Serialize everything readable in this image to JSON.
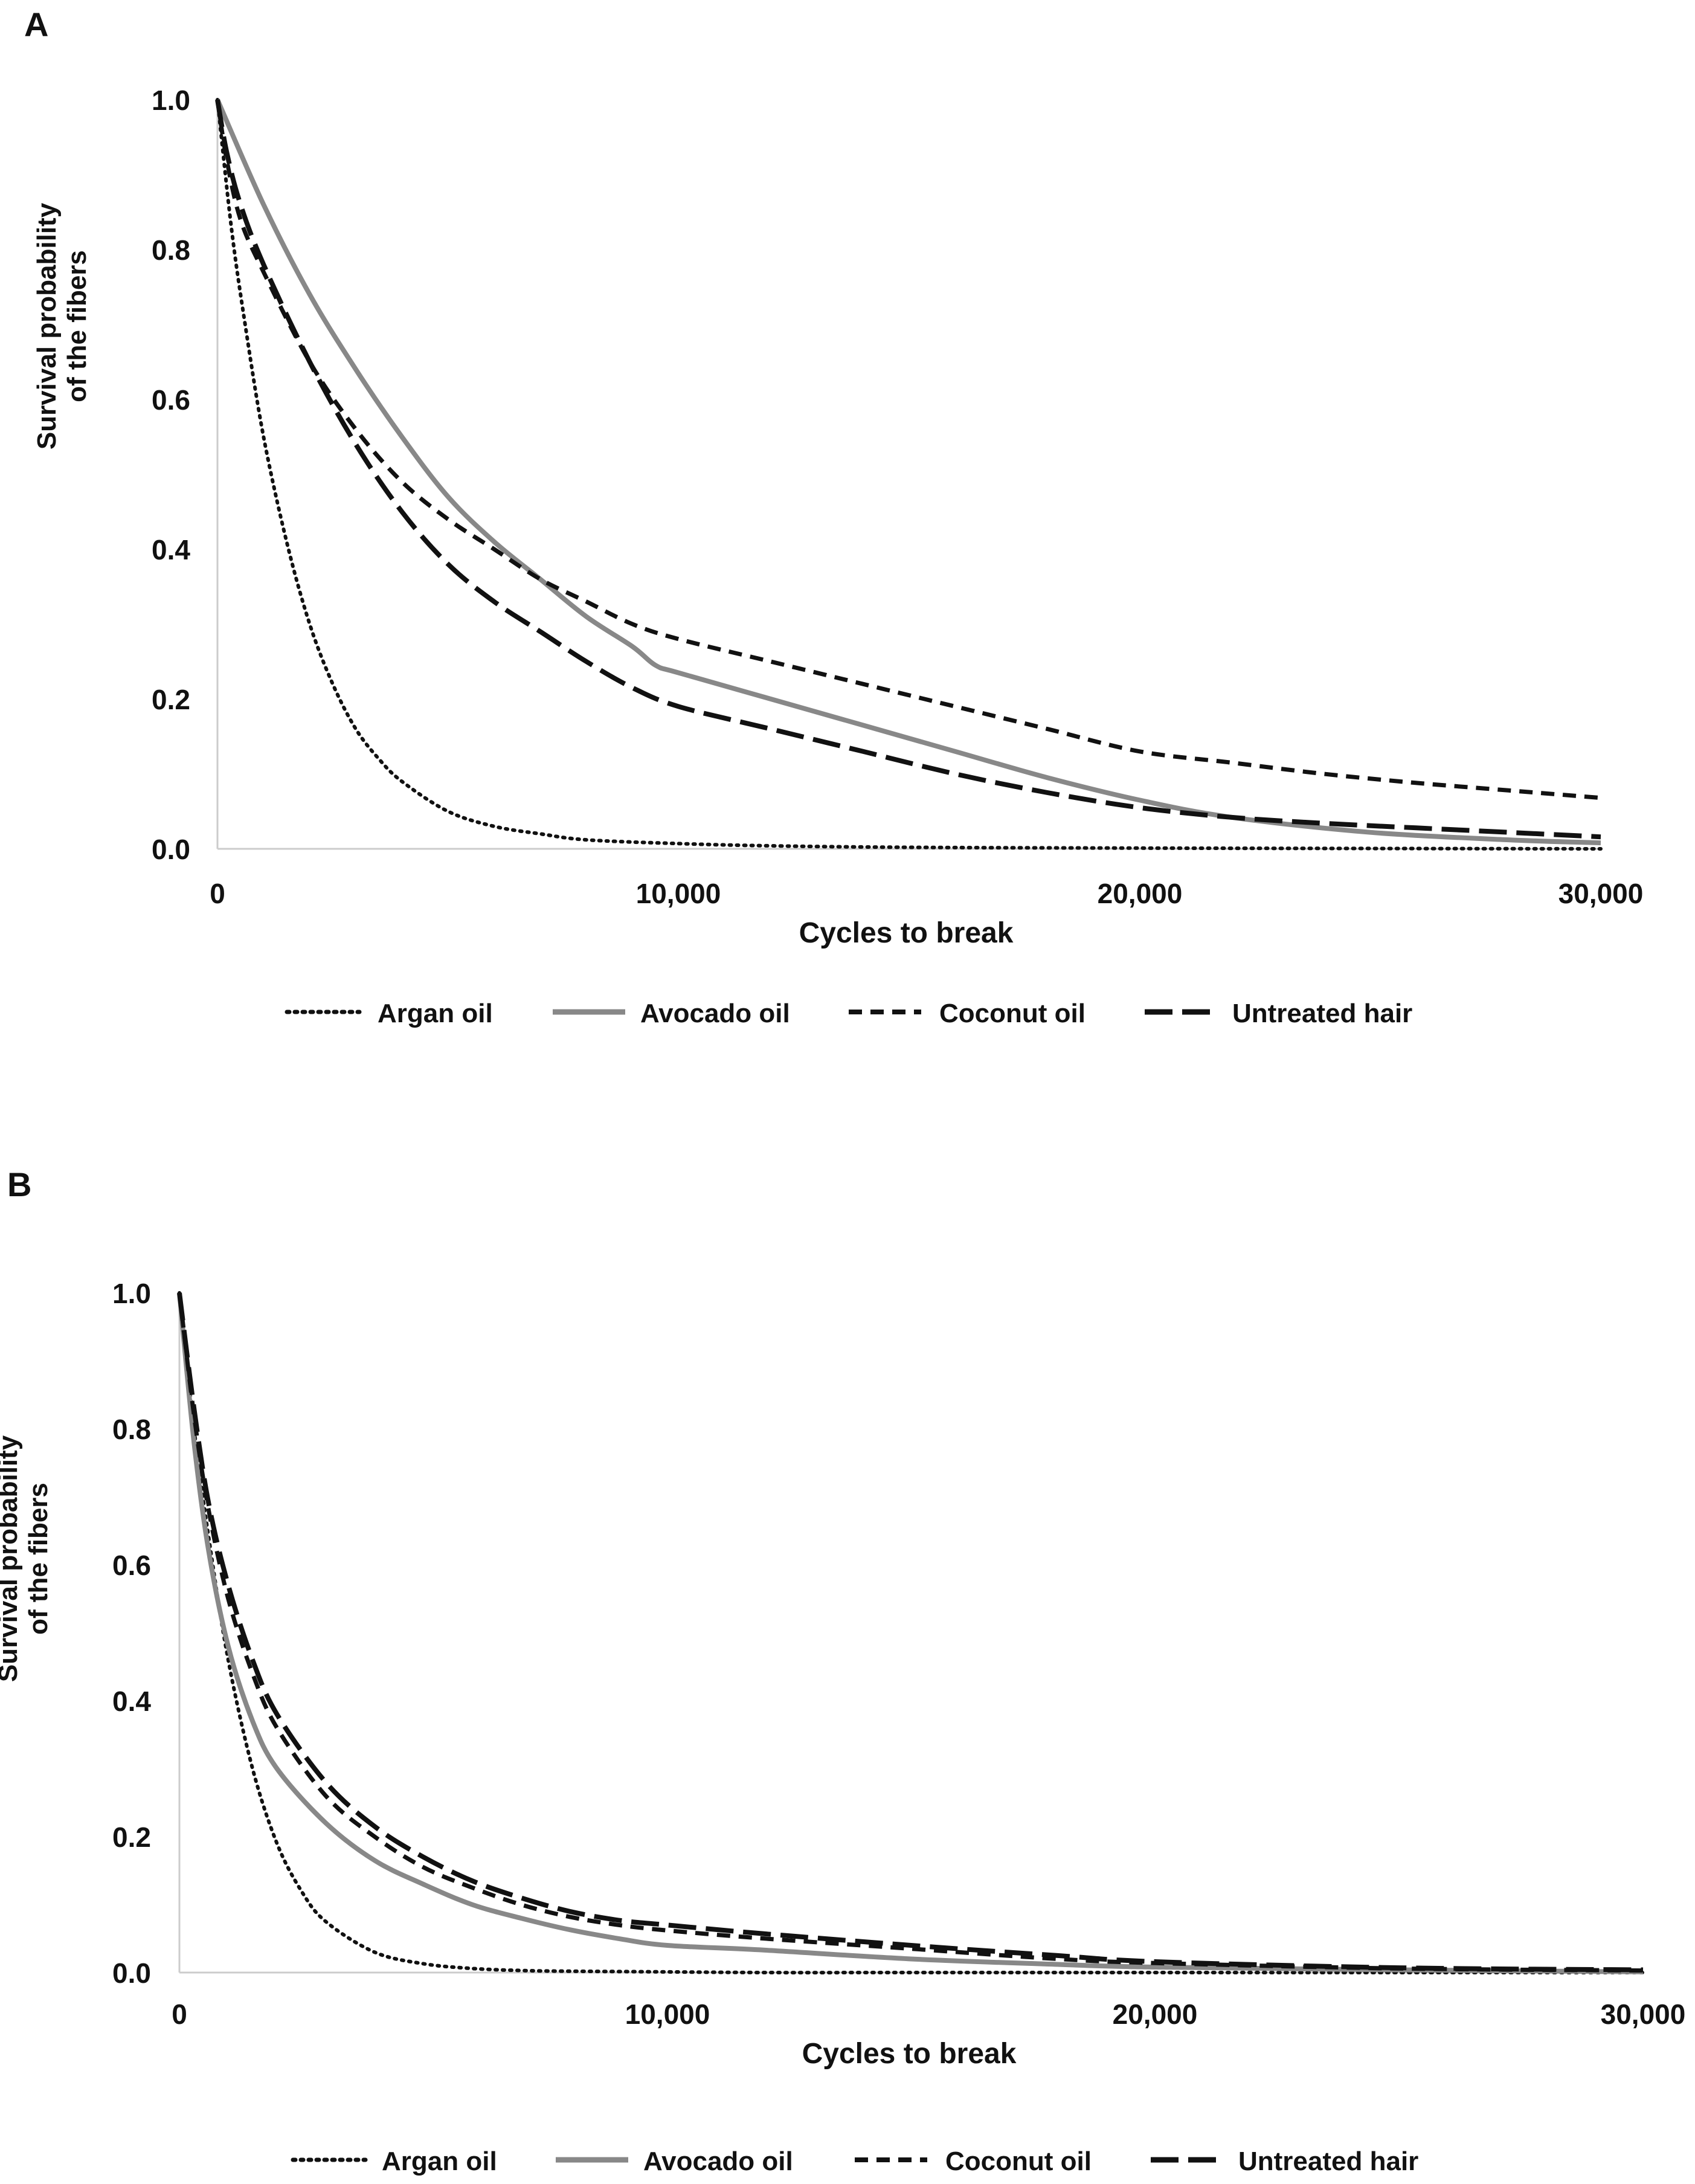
{
  "chart_data": [
    {
      "panel_label": "A",
      "type": "line",
      "title": "",
      "xlabel": "Cycles to break",
      "ylabel_line1": "Survival probability",
      "ylabel_line2": "of the fibers",
      "xlim": [
        0,
        30000
      ],
      "ylim": [
        0,
        1
      ],
      "x_ticks": [
        0,
        10000,
        20000,
        30000
      ],
      "x_tick_labels": [
        "0",
        "10,000",
        "20,000",
        "30,000"
      ],
      "y_ticks": [
        0,
        0.2,
        0.4,
        0.6,
        0.8,
        1.0
      ],
      "y_tick_labels": [
        "0.0",
        "0.2",
        "0.4",
        "0.6",
        "0.8",
        "1.0"
      ],
      "grid": false,
      "legend_position": "bottom",
      "series": [
        {
          "name": "Argan oil",
          "style": "dotted",
          "color": "#111111",
          "x": [
            0,
            300,
            600,
            1000,
            1500,
            2000,
            2500,
            3000,
            3500,
            4000,
            5000,
            6000,
            7000,
            8000,
            10000,
            12000,
            15000,
            20000,
            30000
          ],
          "y": [
            1.0,
            0.83,
            0.7,
            0.55,
            0.41,
            0.3,
            0.22,
            0.16,
            0.12,
            0.09,
            0.05,
            0.03,
            0.02,
            0.012,
            0.007,
            0.004,
            0.002,
            0.001,
            0.0
          ]
        },
        {
          "name": "Avocado oil",
          "style": "solid",
          "color": "#888888",
          "x": [
            0,
            1000,
            2000,
            3000,
            4000,
            5000,
            6000,
            7000,
            8000,
            9000,
            9500,
            10000,
            12000,
            14000,
            16000,
            18000,
            20000,
            22000,
            25000,
            28000,
            30000
          ],
          "y": [
            1.0,
            0.86,
            0.74,
            0.64,
            0.55,
            0.47,
            0.41,
            0.36,
            0.31,
            0.27,
            0.245,
            0.235,
            0.2,
            0.165,
            0.13,
            0.095,
            0.065,
            0.042,
            0.022,
            0.012,
            0.008
          ]
        },
        {
          "name": "Coconut oil",
          "style": "dashed",
          "color": "#111111",
          "x": [
            0,
            200,
            500,
            1000,
            2000,
            3000,
            4000,
            5000,
            6000,
            7000,
            8000,
            9000,
            10000,
            12000,
            14000,
            16000,
            18000,
            20000,
            22000,
            24000,
            26000,
            28000,
            30000
          ],
          "y": [
            1.0,
            0.92,
            0.84,
            0.77,
            0.65,
            0.56,
            0.49,
            0.44,
            0.4,
            0.36,
            0.33,
            0.3,
            0.28,
            0.25,
            0.22,
            0.19,
            0.16,
            0.13,
            0.115,
            0.1,
            0.088,
            0.078,
            0.068
          ]
        },
        {
          "name": "Untreated hair",
          "style": "longdash",
          "color": "#111111",
          "x": [
            0,
            200,
            500,
            1000,
            2000,
            3000,
            4000,
            5000,
            6000,
            7000,
            8000,
            9000,
            10000,
            12000,
            14000,
            16000,
            18000,
            20000,
            22000,
            24000,
            26000,
            28000,
            30000
          ],
          "y": [
            1.0,
            0.93,
            0.86,
            0.78,
            0.65,
            0.54,
            0.45,
            0.38,
            0.33,
            0.29,
            0.25,
            0.215,
            0.19,
            0.16,
            0.13,
            0.1,
            0.075,
            0.055,
            0.042,
            0.034,
            0.028,
            0.022,
            0.016
          ]
        }
      ]
    },
    {
      "panel_label": "B",
      "type": "line",
      "title": "",
      "xlabel": "Cycles to break",
      "ylabel_line1": "Survival probability",
      "ylabel_line2": "of the fibers",
      "xlim": [
        0,
        30000
      ],
      "ylim": [
        0,
        1
      ],
      "x_ticks": [
        0,
        10000,
        20000,
        30000
      ],
      "x_tick_labels": [
        "0",
        "10,000",
        "20,000",
        "30,000"
      ],
      "y_ticks": [
        0,
        0.2,
        0.4,
        0.6,
        0.8,
        1.0
      ],
      "y_tick_labels": [
        "0.0",
        "0.2",
        "0.4",
        "0.6",
        "0.8",
        "1.0"
      ],
      "grid": false,
      "legend_position": "bottom",
      "series": [
        {
          "name": "Argan oil",
          "style": "dotted",
          "color": "#111111",
          "x": [
            0,
            300,
            600,
            1000,
            1500,
            2000,
            2500,
            3000,
            4000,
            5000,
            6000,
            7000,
            8000,
            10000,
            12000,
            15000,
            20000,
            30000
          ],
          "y": [
            1.0,
            0.8,
            0.64,
            0.46,
            0.3,
            0.19,
            0.12,
            0.075,
            0.03,
            0.013,
            0.006,
            0.003,
            0.002,
            0.001,
            0.0,
            0.0,
            0.0,
            0.0
          ]
        },
        {
          "name": "Avocado oil",
          "style": "solid",
          "color": "#888888",
          "x": [
            0,
            300,
            600,
            1000,
            1500,
            2000,
            3000,
            4000,
            5000,
            6000,
            7000,
            8000,
            9000,
            10000,
            12000,
            15000,
            18000,
            20000,
            25000,
            30000
          ],
          "y": [
            1.0,
            0.78,
            0.62,
            0.48,
            0.37,
            0.3,
            0.22,
            0.165,
            0.13,
            0.1,
            0.08,
            0.063,
            0.05,
            0.04,
            0.033,
            0.02,
            0.012,
            0.008,
            0.004,
            0.001
          ]
        },
        {
          "name": "Coconut oil",
          "style": "dashed",
          "color": "#111111",
          "x": [
            0,
            300,
            600,
            1000,
            1500,
            2000,
            3000,
            4000,
            5000,
            6000,
            7000,
            8000,
            9000,
            10000,
            12000,
            15000,
            18000,
            20000,
            25000,
            30000
          ],
          "y": [
            1.0,
            0.82,
            0.68,
            0.55,
            0.44,
            0.36,
            0.26,
            0.2,
            0.155,
            0.125,
            0.1,
            0.082,
            0.07,
            0.062,
            0.05,
            0.035,
            0.02,
            0.014,
            0.006,
            0.003
          ]
        },
        {
          "name": "Untreated hair",
          "style": "longdash",
          "color": "#111111",
          "x": [
            0,
            300,
            600,
            1000,
            1500,
            2000,
            3000,
            4000,
            5000,
            6000,
            7000,
            8000,
            9000,
            10000,
            12000,
            15000,
            18000,
            20000,
            25000,
            30000
          ],
          "y": [
            1.0,
            0.83,
            0.69,
            0.57,
            0.46,
            0.38,
            0.28,
            0.215,
            0.17,
            0.135,
            0.11,
            0.09,
            0.077,
            0.07,
            0.057,
            0.04,
            0.025,
            0.016,
            0.007,
            0.004
          ]
        }
      ]
    }
  ],
  "legend_labels": [
    "Argan oil",
    "Avocado oil",
    "Coconut oil",
    "Untreated hair"
  ]
}
